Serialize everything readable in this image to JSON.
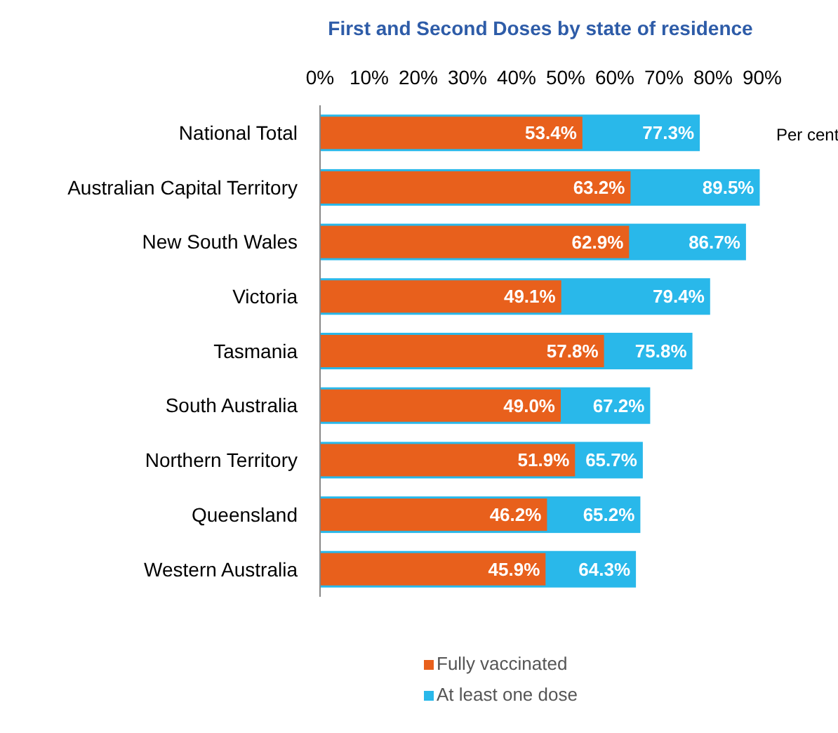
{
  "chart_data": {
    "type": "bar",
    "orientation": "horizontal",
    "title": "First and Second Doses by state of residence",
    "categories": [
      "National Total",
      "Australian Capital Territory",
      "New South Wales",
      "Victoria",
      "Tasmania",
      "South Australia",
      "Northern Territory",
      "Queensland",
      "Western Australia"
    ],
    "series": [
      {
        "name": "Fully vaccinated",
        "color": "#e8601c",
        "values": [
          53.4,
          63.2,
          62.9,
          49.1,
          57.8,
          49.0,
          51.9,
          46.2,
          45.9
        ],
        "value_labels": [
          "53.4%",
          "63.2%",
          "62.9%",
          "49.1%",
          "57.8%",
          "49.0%",
          "51.9%",
          "46.2%",
          "45.9%"
        ]
      },
      {
        "name": "At least one dose",
        "color": "#29b8ea",
        "values": [
          77.3,
          89.5,
          86.7,
          79.4,
          75.8,
          67.2,
          65.7,
          65.2,
          64.3
        ],
        "value_labels": [
          "77.3%",
          "89.5%",
          "86.7%",
          "79.4%",
          "75.8%",
          "67.2%",
          "65.7%",
          "65.2%",
          "64.3%"
        ]
      }
    ],
    "xlim": [
      0,
      90
    ],
    "xticks": [
      {
        "value": 0,
        "label": "0%"
      },
      {
        "value": 10,
        "label": "10%"
      },
      {
        "value": 20,
        "label": "20%"
      },
      {
        "value": 30,
        "label": "30%"
      },
      {
        "value": 40,
        "label": "40%"
      },
      {
        "value": 50,
        "label": "50%"
      },
      {
        "value": 60,
        "label": "60%"
      },
      {
        "value": 70,
        "label": "70%"
      },
      {
        "value": 80,
        "label": "80%"
      },
      {
        "value": 90,
        "label": "90%"
      }
    ],
    "annotations": [
      "Per cent"
    ],
    "legend": "bottom"
  }
}
